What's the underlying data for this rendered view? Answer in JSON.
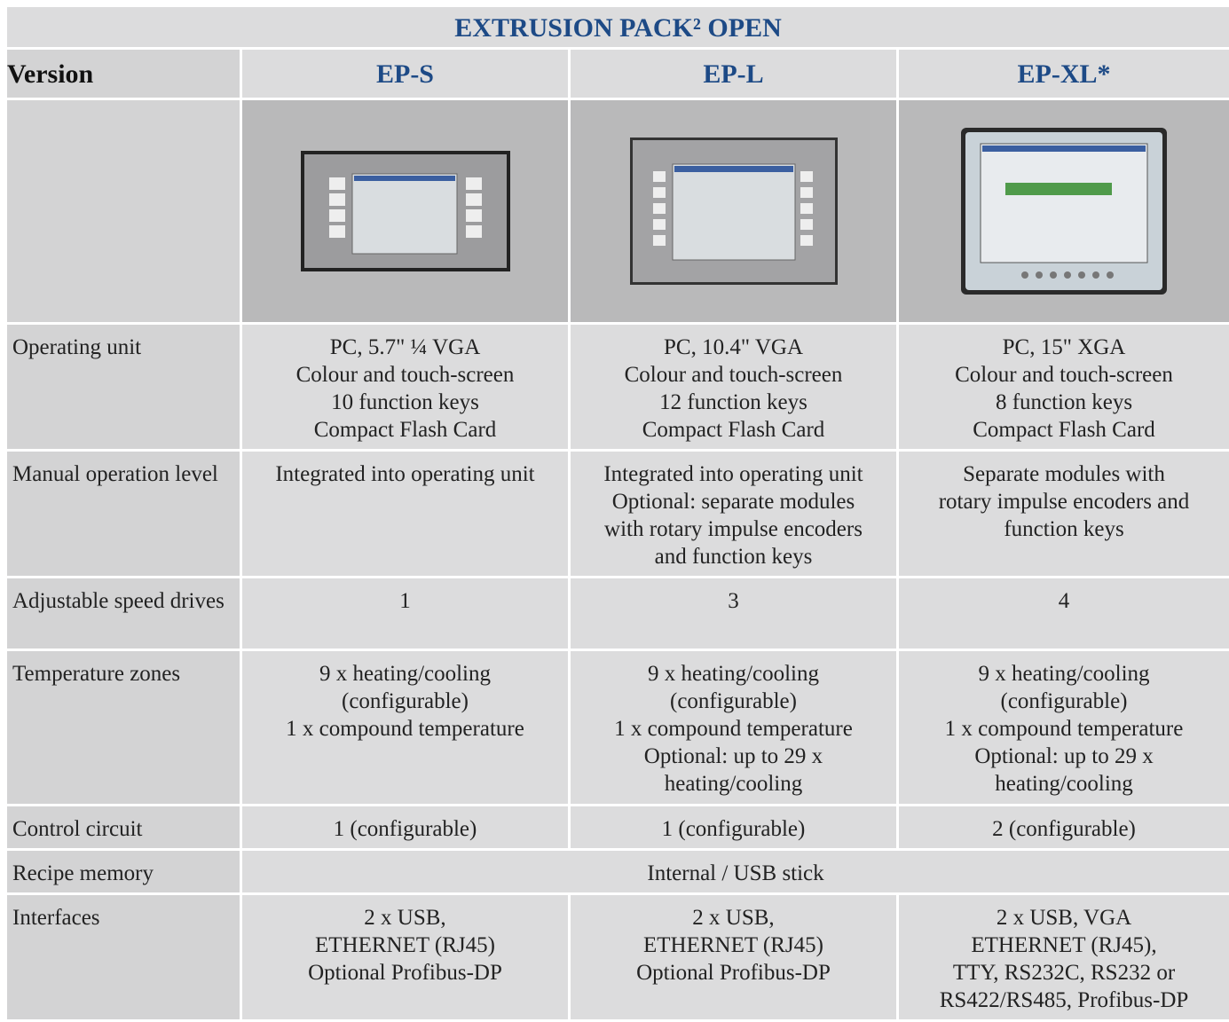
{
  "table": {
    "title": "EXTRUSION PACK² OPEN",
    "header": [
      "Version",
      "EP-S",
      "EP-L",
      "EP-XL*"
    ],
    "rows": [
      [
        "Operating unit",
        "PC, 5.7\" ¼ VGA\nColour and touch-screen\n10 function keys\nCompact Flash Card",
        "PC, 10.4\" VGA\nColour and touch-screen\n12 function keys\nCompact Flash Card",
        "PC, 15\" XGA\nColour and touch-screen\n8 function keys\nCompact Flash Card"
      ],
      [
        "Manual operation level",
        "Integrated into operating unit",
        "Integrated into operating unit\nOptional: separate modules\nwith rotary impulse encoders\nand function keys",
        "Separate modules with\nrotary impulse encoders and\nfunction keys"
      ],
      [
        "Adjustable speed drives",
        "1",
        "3",
        "4"
      ],
      [
        "Temperature zones",
        "9 x heating/cooling\n(configurable)\n1 x compound temperature",
        "9 x heating/cooling\n(configurable)\n1 x compound temperature\nOptional: up to 29 x\nheating/cooling",
        "9 x heating/cooling\n(configurable)\n1 x compound temperature\nOptional: up to 29 x\nheating/cooling"
      ],
      [
        "Control circuit",
        "1 (configurable)",
        "1 (configurable)",
        "2 (configurable)"
      ],
      [
        "Recipe memory",
        "Internal / USB stick"
      ],
      [
        "Interfaces",
        "2 x USB,\nETHERNET (RJ45)\nOptional Profibus-DP",
        "2 x USB,\nETHERNET (RJ45)\nOptional Profibus-DP",
        "2 x USB, VGA\nETHERNET (RJ45),\nTTY, RS232C, RS232 or\nRS422/RS485, Profibus-DP"
      ]
    ]
  }
}
